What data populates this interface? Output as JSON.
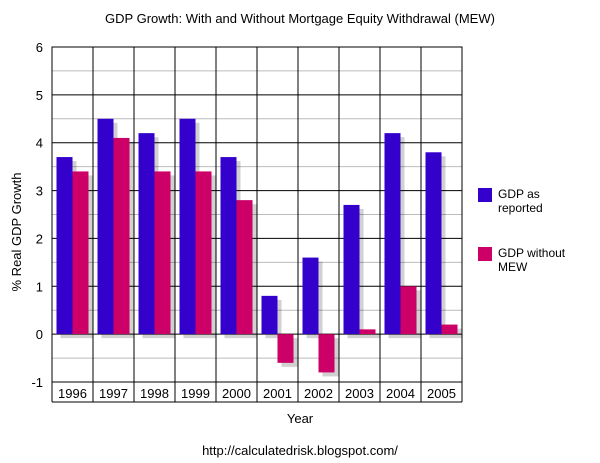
{
  "chart_data": {
    "type": "bar",
    "title": "GDP Growth: With and Without Mortgage Equity Withdrawal (MEW)",
    "xlabel": "Year",
    "ylabel": "% Real GDP Growth",
    "ylim": [
      -1,
      6
    ],
    "yticks": [
      -1,
      0,
      1,
      2,
      3,
      4,
      5,
      6
    ],
    "grid": true,
    "legend_position": "right",
    "categories": [
      "1996",
      "1997",
      "1998",
      "1999",
      "2000",
      "2001",
      "2002",
      "2003",
      "2004",
      "2005"
    ],
    "series": [
      {
        "name": "GDP as reported",
        "legend_lines": [
          "GDP as",
          "reported"
        ],
        "color": "#3300cc",
        "values": [
          3.7,
          4.5,
          4.2,
          4.5,
          3.7,
          0.8,
          1.6,
          2.7,
          4.2,
          3.8
        ]
      },
      {
        "name": "GDP without MEW",
        "legend_lines": [
          "GDP without",
          "MEW"
        ],
        "color": "#cc0066",
        "values": [
          3.4,
          4.1,
          3.4,
          3.4,
          2.8,
          -0.6,
          -0.8,
          0.1,
          1.0,
          0.2
        ]
      }
    ]
  },
  "footer": {
    "source": "http://calculatedrisk.blogspot.com/"
  }
}
